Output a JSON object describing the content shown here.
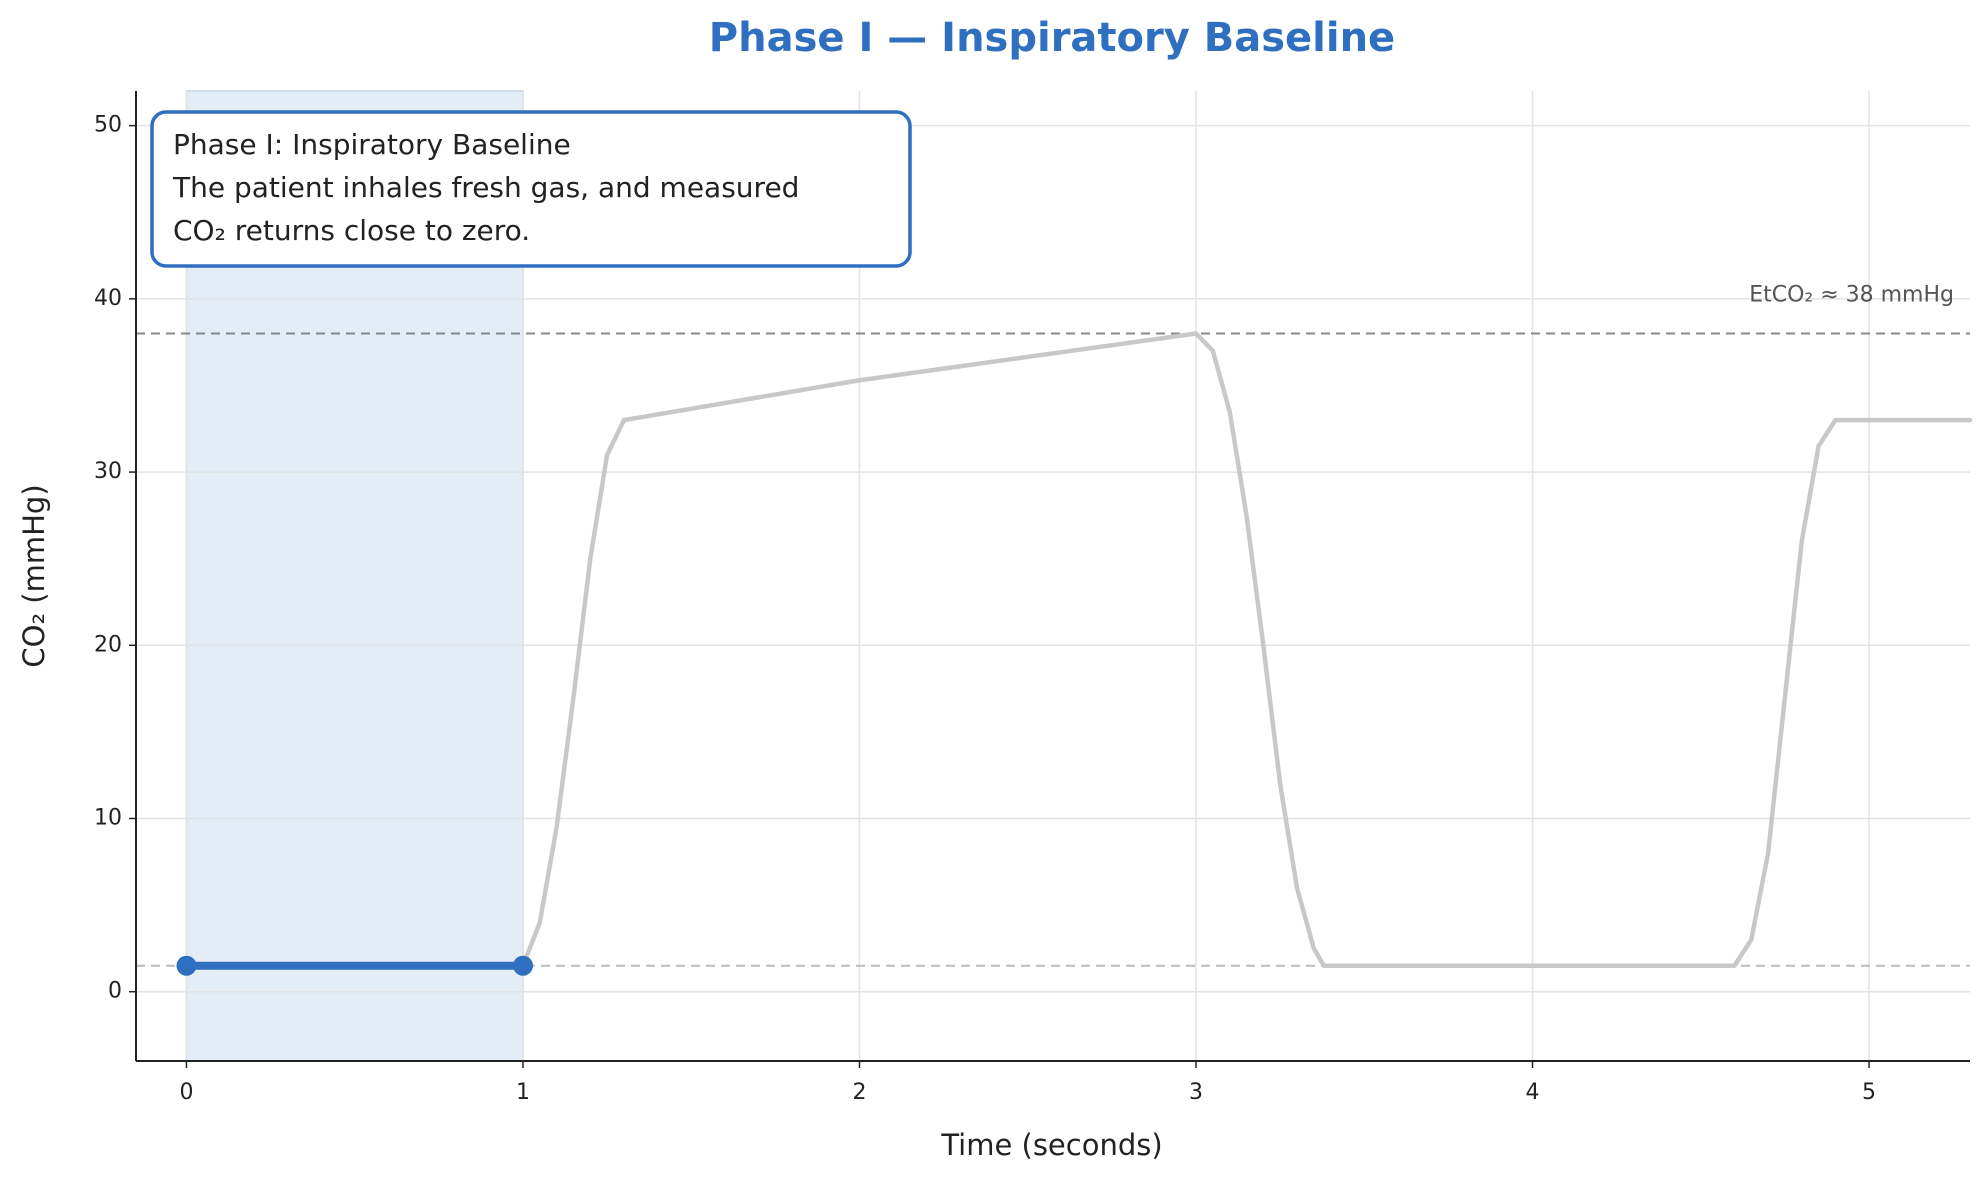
{
  "chart_data": {
    "type": "line",
    "title": "Phase I — Inspiratory Baseline",
    "xlabel": "Time (seconds)",
    "ylabel": "CO₂ (mmHg)",
    "xlim": [
      -0.15,
      5.3
    ],
    "ylim": [
      -4,
      52
    ],
    "xticks": [
      0,
      1,
      2,
      3,
      4,
      5
    ],
    "yticks": [
      0,
      10,
      20,
      30,
      40,
      50
    ],
    "grid": true,
    "highlight_span": [
      0,
      1
    ],
    "highlight_color": "#dbe6f4",
    "reference_lines": [
      {
        "value": 38,
        "label": "EtCO₂ ≈ 38 mmHg",
        "color": "#888888"
      },
      {
        "value": 1.5,
        "color": "#bbbbbb"
      }
    ],
    "series": [
      {
        "color": "#c8c8c8",
        "x": [
          0,
          1,
          1.05,
          1.1,
          1.15,
          1.2,
          1.25,
          1.3,
          2,
          3,
          3.05,
          3.1,
          3.15,
          3.2,
          3.25,
          3.3,
          3.35,
          3.38,
          4.6,
          4.65,
          4.7,
          4.75,
          4.8,
          4.85,
          4.9,
          5.3
        ],
        "values": [
          1.5,
          1.5,
          4,
          9.5,
          17,
          25,
          31,
          33,
          35.3,
          38,
          37,
          33.5,
          27.5,
          20,
          12,
          6,
          2.5,
          1.5,
          1.5,
          3,
          8,
          17,
          26,
          31.5,
          33,
          33
        ]
      },
      {
        "color": "#2f6fbf",
        "x": [
          0,
          1
        ],
        "values": [
          1.5,
          1.5
        ]
      }
    ],
    "annotation": {
      "lines": [
        "Phase I: Inspiratory Baseline",
        "The patient inhales fresh gas, and measured",
        "CO₂ returns close to zero."
      ],
      "color": "#2f6fbf"
    }
  }
}
